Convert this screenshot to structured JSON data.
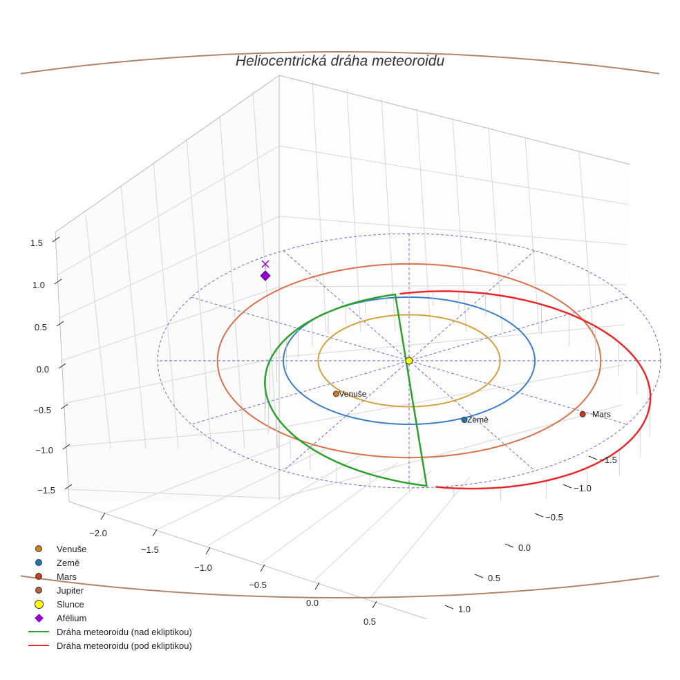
{
  "chart_data": {
    "type": "line3d",
    "title": "Heliocentrická dráha meteoroidu",
    "axes": {
      "x": {
        "ticks": [
          "−2.0",
          "−1.5",
          "−1.0",
          "−0.5",
          "0.0",
          "0.5"
        ],
        "range": [
          -2.3,
          0.8
        ]
      },
      "y": {
        "ticks": [
          "−1.5",
          "−1.0",
          "−0.5",
          "0.0",
          "0.5",
          "1.0"
        ],
        "range": [
          -1.8,
          1.2
        ]
      },
      "z": {
        "ticks": [
          "−1.5",
          "−1.0",
          "−0.5",
          "0.0",
          "0.5",
          "1.0",
          "1.5"
        ],
        "range": [
          -1.7,
          1.7
        ]
      }
    },
    "orbits": [
      {
        "name": "Venuše",
        "a": 0.723,
        "color": "#d4a03c"
      },
      {
        "name": "Země",
        "a": 1.0,
        "color": "#3a7dc9"
      },
      {
        "name": "Mars",
        "a": 1.524,
        "color": "#d9704a"
      },
      {
        "name": "Jupiter",
        "a": 5.2,
        "color": "#b0846a"
      }
    ],
    "planets": [
      {
        "name": "Venuše",
        "label": "Venuše",
        "color": "#d07f1a"
      },
      {
        "name": "Země",
        "label": "Země",
        "color": "#1f77b4"
      },
      {
        "name": "Mars",
        "label": "Mars",
        "color": "#cc3a1c"
      }
    ],
    "sun": {
      "label": "Slunce",
      "color": "#ffff00"
    },
    "aphelion": {
      "label": "Afélium",
      "color": "#9400d3",
      "distance_au": 2.2
    },
    "meteoroid": {
      "a_au": 1.6,
      "e": 0.375,
      "perihelion_au": 1.0,
      "aphelion_au": 2.2,
      "above_color": "#2ca02c",
      "below_color": "#e8282a",
      "above_label": "Dráha meteoroidu (nad ekliptikou)",
      "below_label": "Dráha meteoroidu (pod ekliptikou)"
    },
    "ecliptic_reference_circle_au": 2.0,
    "legend": [
      {
        "label": "Venuše",
        "kind": "dot",
        "color": "#d07f1a"
      },
      {
        "label": "Země",
        "kind": "dot",
        "color": "#1f77b4"
      },
      {
        "label": "Mars",
        "kind": "dot",
        "color": "#cc3a1c"
      },
      {
        "label": "Jupiter",
        "kind": "dot",
        "color": "#b0603a"
      },
      {
        "label": "Slunce",
        "kind": "sun",
        "color": "#ffff00"
      },
      {
        "label": "Afélium",
        "kind": "diamond",
        "color": "#9400d3"
      },
      {
        "label": "Dráha meteoroidu (nad ekliptikou)",
        "kind": "line",
        "color": "#2ca02c"
      },
      {
        "label": "Dráha meteoroidu (pod ekliptikou)",
        "kind": "line",
        "color": "#e8282a"
      }
    ]
  }
}
